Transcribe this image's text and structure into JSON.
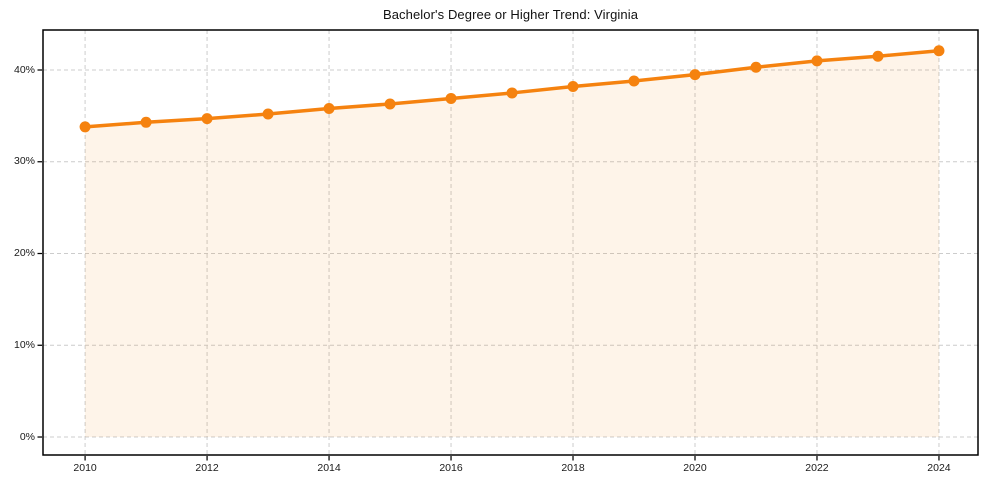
{
  "chart_data": {
    "type": "line",
    "title": "Bachelor's Degree or Higher Trend: Virginia",
    "xlabel": "",
    "ylabel": "",
    "x": [
      2010,
      2011,
      2012,
      2013,
      2014,
      2015,
      2016,
      2017,
      2018,
      2019,
      2020,
      2021,
      2022,
      2023,
      2024
    ],
    "values": [
      33.8,
      34.3,
      34.7,
      35.2,
      35.8,
      36.3,
      36.9,
      37.5,
      38.2,
      38.8,
      39.5,
      40.3,
      41.0,
      41.5,
      42.1
    ],
    "xlim": [
      2009.31,
      2024.64
    ],
    "ylim": [
      -1.96,
      44.36
    ],
    "xticks": {
      "values": [
        2010,
        2012,
        2014,
        2016,
        2018,
        2020,
        2022,
        2024
      ],
      "labels": [
        "2010",
        "2012",
        "2014",
        "2016",
        "2018",
        "2020",
        "2022",
        "2024"
      ]
    },
    "yticks": {
      "values": [
        0,
        10,
        20,
        30,
        40
      ],
      "labels": [
        "0%",
        "10%",
        "20%",
        "30%",
        "40%"
      ]
    },
    "grid": true,
    "grid_style": "dashed",
    "legend": false,
    "area_fill_to": 0,
    "line_width": 3.5,
    "marker": "circle",
    "marker_radius": 5.5,
    "colors": {
      "line": "#f5820f",
      "marker": "#f5820f",
      "fill": "#f5820f",
      "fill_opacity": 0.09,
      "grid": "#cccccc",
      "spine": "#000000",
      "text": "#1a1a1a",
      "background": "#ffffff"
    }
  }
}
